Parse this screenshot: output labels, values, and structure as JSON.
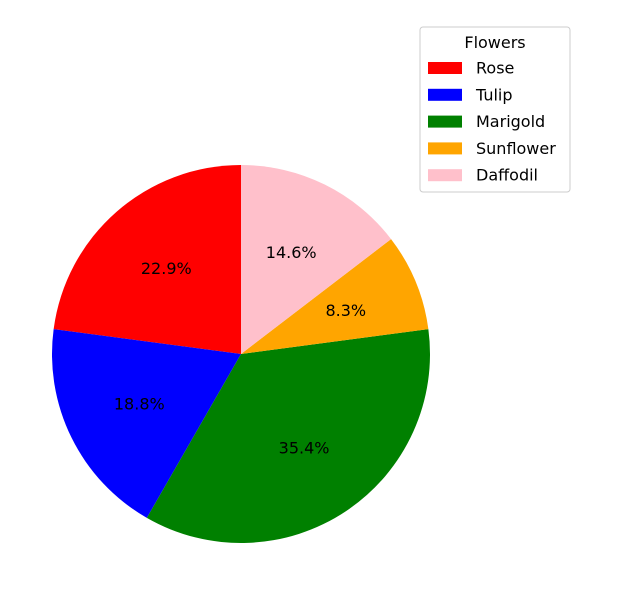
{
  "chart_data": {
    "type": "pie",
    "categories": [
      "Rose",
      "Tulip",
      "Marigold",
      "Sunflower",
      "Daffodil"
    ],
    "values": [
      22.9,
      18.8,
      35.4,
      8.3,
      14.6
    ],
    "labels": [
      "22.9%",
      "18.8%",
      "35.4%",
      "8.3%",
      "14.6%"
    ],
    "colors": [
      "#ff0000",
      "#0000ff",
      "#008000",
      "#ffa500",
      "#ffc0cb"
    ],
    "start_angle_deg": 90,
    "direction": "counterclockwise",
    "legend": {
      "title": "Flowers",
      "placement": "top-right"
    }
  }
}
